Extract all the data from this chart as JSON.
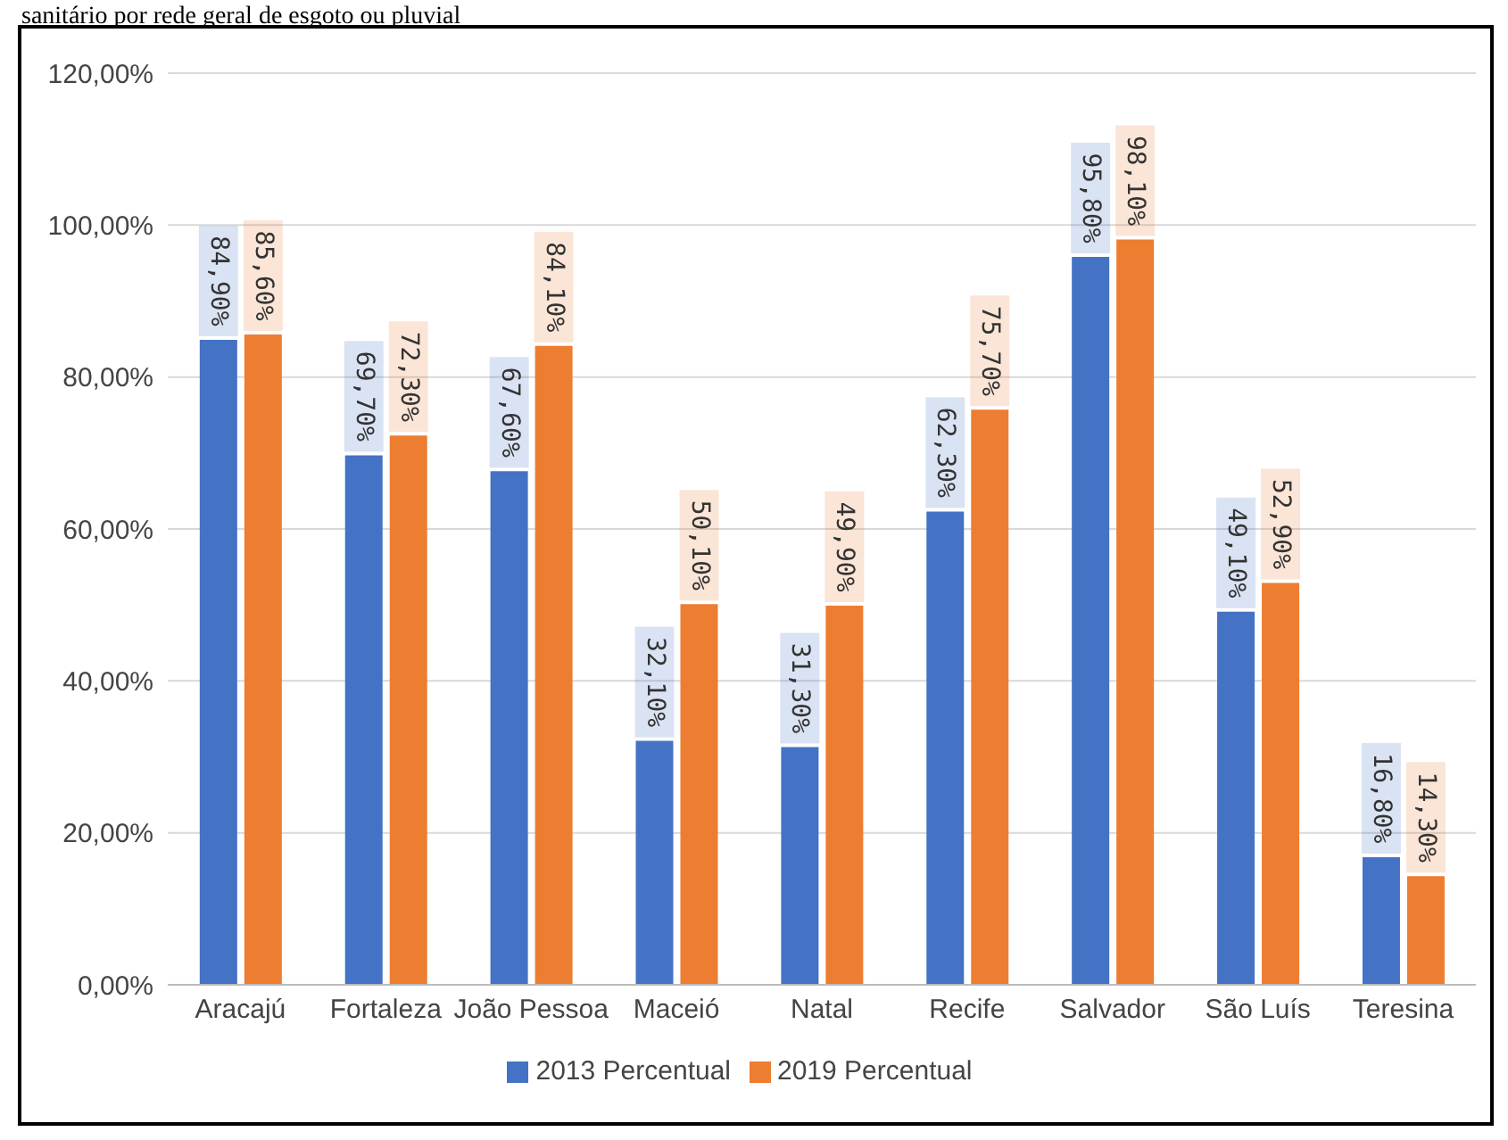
{
  "chart_data": {
    "type": "bar",
    "title": "sanitário por rede geral de esgoto ou pluvial",
    "categories": [
      "Aracajú",
      "Fortaleza",
      "João Pessoa",
      "Maceió",
      "Natal",
      "Recife",
      "Salvador",
      "São Luís",
      "Teresina"
    ],
    "series": [
      {
        "name": "2013 Percentual",
        "color": "#4472c4",
        "values": [
          84.9,
          69.7,
          67.6,
          32.1,
          31.3,
          62.3,
          95.8,
          49.1,
          16.8
        ],
        "value_labels": [
          "84,90%",
          "69,70%",
          "67,60%",
          "32,10%",
          "31,30%",
          "62,30%",
          "95,80%",
          "49,10%",
          "16,80%"
        ]
      },
      {
        "name": "2019 Percentual",
        "color": "#ed7d31",
        "values": [
          85.6,
          72.3,
          84.1,
          50.1,
          49.9,
          75.7,
          98.1,
          52.9,
          14.3
        ],
        "value_labels": [
          "85,60%",
          "72,30%",
          "84,10%",
          "50,10%",
          "49,90%",
          "75,70%",
          "98,10%",
          "52,90%",
          "14,30%"
        ]
      }
    ],
    "ylim": [
      0,
      120
    ],
    "yticks": [
      {
        "value": 0,
        "label": "0,00%"
      },
      {
        "value": 20,
        "label": "20,00%"
      },
      {
        "value": 40,
        "label": "40,00%"
      },
      {
        "value": 60,
        "label": "60,00%"
      },
      {
        "value": 80,
        "label": "80,00%"
      },
      {
        "value": 100,
        "label": "100,00%"
      },
      {
        "value": 120,
        "label": "120,00%"
      }
    ],
    "grid": "y",
    "legend": "bottom"
  }
}
